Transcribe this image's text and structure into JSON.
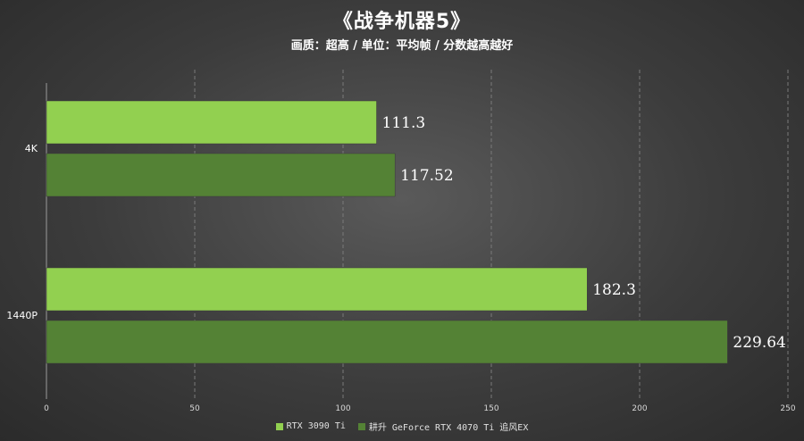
{
  "title": "《战争机器5》",
  "subtitle": "画质：超高 / 单位：平均帧 / 分数越高越好",
  "colors": {
    "series1": "#92d050",
    "series2": "#548235"
  },
  "chart_data": {
    "type": "bar",
    "orientation": "horizontal",
    "title": "《战争机器5》",
    "subtitle": "画质：超高 / 单位：平均帧 / 分数越高越好",
    "categories": [
      "4K",
      "1440P"
    ],
    "series": [
      {
        "name": "RTX 3090 Ti",
        "values": [
          111.3,
          182.3
        ],
        "labels": [
          "111.3",
          "182.3"
        ]
      },
      {
        "name": "耕升 GeForce RTX 4070 Ti 追风EX",
        "values": [
          117.52,
          229.64
        ],
        "labels": [
          "117.52",
          "229.64"
        ]
      }
    ],
    "xlim": [
      0,
      250
    ],
    "xticks": [
      "0",
      "50",
      "100",
      "150",
      "200",
      "250"
    ],
    "grid": true,
    "legend_position": "bottom"
  }
}
